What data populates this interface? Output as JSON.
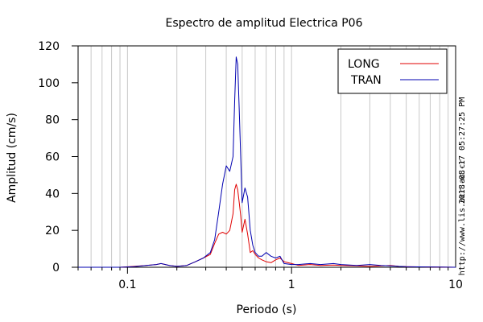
{
  "chart_data": {
    "type": "line",
    "title": "Espectro de amplitud Electrica P06",
    "xlabel": "Periodo (s)",
    "ylabel": "Amplitud (cm/s)",
    "x_scale": "log",
    "xlim": [
      0.05,
      10
    ],
    "ylim": [
      0,
      120
    ],
    "grid": "vertical",
    "legend_position": "top-right",
    "x_tick_labels": [
      {
        "value": 0.1,
        "label": "0.1"
      },
      {
        "value": 1,
        "label": "1"
      },
      {
        "value": 10,
        "label": "10"
      }
    ],
    "y_ticks": [
      {
        "value": 0,
        "label": "0"
      },
      {
        "value": 20,
        "label": "20"
      },
      {
        "value": 40,
        "label": "40"
      },
      {
        "value": 60,
        "label": "60"
      },
      {
        "value": 80,
        "label": "80"
      },
      {
        "value": 100,
        "label": "100"
      },
      {
        "value": 120,
        "label": "120"
      }
    ],
    "series": [
      {
        "name": "LONG",
        "color": "#e00000",
        "x": [
          0.05,
          0.09,
          0.11,
          0.13,
          0.15,
          0.16,
          0.18,
          0.2,
          0.23,
          0.26,
          0.29,
          0.32,
          0.34,
          0.36,
          0.38,
          0.4,
          0.42,
          0.44,
          0.45,
          0.46,
          0.47,
          0.48,
          0.49,
          0.5,
          0.52,
          0.54,
          0.56,
          0.58,
          0.6,
          0.63,
          0.66,
          0.7,
          0.75,
          0.8,
          0.85,
          0.9,
          1.0,
          1.1,
          1.3,
          1.5,
          1.8,
          2.0,
          2.5,
          3.0,
          3.5,
          4.0,
          4.5,
          5.0,
          6.0,
          8.0,
          10.0
        ],
        "y": [
          0,
          0,
          0.5,
          1,
          1.5,
          2,
          1,
          0.5,
          1,
          3,
          5,
          7,
          13,
          18,
          19,
          18,
          20,
          29,
          42,
          45,
          42,
          35,
          28,
          19,
          26,
          18,
          8,
          9,
          7,
          5,
          4,
          3,
          2.5,
          4,
          5,
          3,
          2,
          1,
          1.5,
          1,
          1.2,
          1,
          0.8,
          0.5,
          0.8,
          1,
          0.5,
          0.3,
          0.2,
          0.1,
          0
        ]
      },
      {
        "name": "TRAN",
        "color": "#0000b0",
        "x": [
          0.05,
          0.09,
          0.11,
          0.13,
          0.15,
          0.16,
          0.18,
          0.2,
          0.23,
          0.26,
          0.29,
          0.32,
          0.34,
          0.36,
          0.38,
          0.4,
          0.42,
          0.44,
          0.45,
          0.46,
          0.47,
          0.48,
          0.49,
          0.5,
          0.52,
          0.54,
          0.56,
          0.58,
          0.6,
          0.63,
          0.66,
          0.7,
          0.75,
          0.8,
          0.85,
          0.9,
          1.0,
          1.1,
          1.3,
          1.5,
          1.8,
          2.0,
          2.5,
          3.0,
          3.5,
          4.0,
          4.5,
          5.0,
          6.0,
          8.0,
          10.0
        ],
        "y": [
          0,
          0,
          0.3,
          1,
          1.5,
          2,
          1,
          0.5,
          1,
          3,
          5,
          8,
          15,
          30,
          45,
          55,
          52,
          60,
          90,
          114,
          110,
          85,
          60,
          35,
          43,
          38,
          20,
          12,
          8,
          6,
          6,
          8,
          6,
          5,
          6,
          2,
          1.5,
          1.5,
          2,
          1.5,
          2,
          1.5,
          1,
          1.5,
          1,
          0.8,
          0.5,
          0.3,
          0.2,
          0.1,
          0
        ]
      }
    ]
  },
  "side_text": {
    "timestamp": "2018-08-17 05:27:25 PM",
    "url": "http://www.lis.ucr.ac.cr"
  }
}
